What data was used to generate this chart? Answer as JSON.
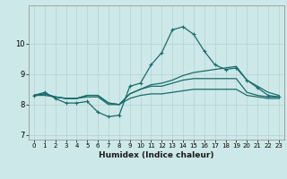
{
  "xlabel": "Humidex (Indice chaleur)",
  "ylabel": "",
  "xlim": [
    -0.5,
    23.5
  ],
  "ylim": [
    6.85,
    11.25
  ],
  "yticks": [
    7,
    8,
    9,
    10
  ],
  "xticks": [
    0,
    1,
    2,
    3,
    4,
    5,
    6,
    7,
    8,
    9,
    10,
    11,
    12,
    13,
    14,
    15,
    16,
    17,
    18,
    19,
    20,
    21,
    22,
    23
  ],
  "bg_color": "#cde8e8",
  "grid_color": "#b8d4d4",
  "line_color": "#1a6b6b",
  "line1": [
    8.3,
    8.4,
    8.2,
    8.05,
    8.05,
    8.1,
    7.75,
    7.6,
    7.65,
    8.6,
    8.7,
    9.3,
    9.7,
    10.45,
    10.55,
    10.3,
    9.75,
    9.3,
    9.15,
    9.2,
    8.8,
    8.55,
    8.3,
    8.25
  ],
  "line2": [
    8.3,
    8.35,
    8.25,
    8.2,
    8.2,
    8.3,
    8.3,
    8.05,
    8.0,
    8.35,
    8.5,
    8.65,
    8.7,
    8.8,
    8.95,
    9.05,
    9.1,
    9.15,
    9.2,
    9.25,
    8.8,
    8.6,
    8.4,
    8.3
  ],
  "line3": [
    8.3,
    8.35,
    8.25,
    8.2,
    8.2,
    8.3,
    8.3,
    8.05,
    8.0,
    8.35,
    8.5,
    8.6,
    8.6,
    8.7,
    8.8,
    8.85,
    8.85,
    8.85,
    8.85,
    8.85,
    8.4,
    8.3,
    8.25,
    8.25
  ],
  "line4": [
    8.3,
    8.3,
    8.25,
    8.2,
    8.2,
    8.25,
    8.25,
    8.0,
    8.0,
    8.2,
    8.3,
    8.35,
    8.35,
    8.4,
    8.45,
    8.5,
    8.5,
    8.5,
    8.5,
    8.5,
    8.3,
    8.25,
    8.2,
    8.2
  ]
}
